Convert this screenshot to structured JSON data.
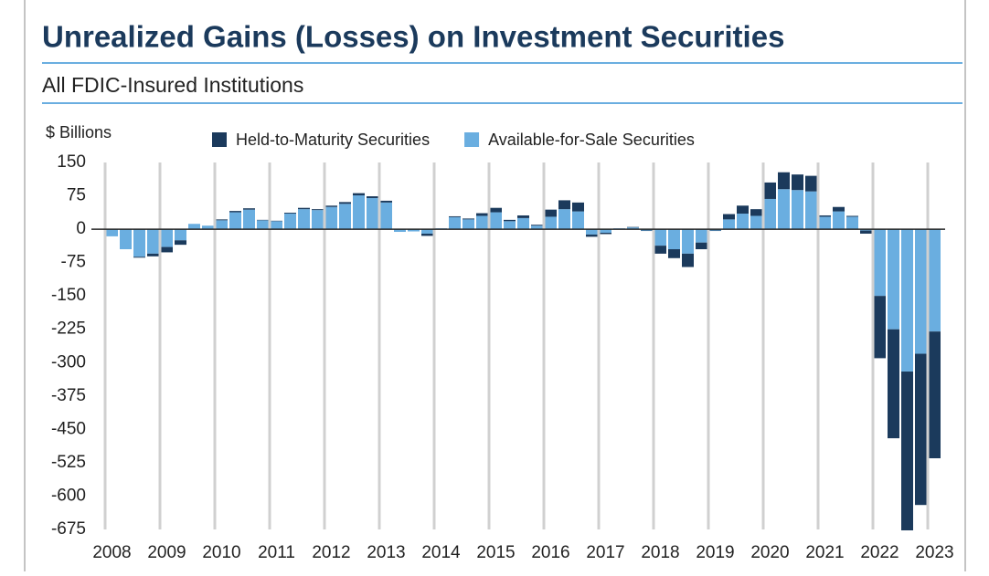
{
  "chart_data": {
    "type": "stacked-bar",
    "title": "Unrealized Gains (Losses) on Investment Securities",
    "subtitle": "All FDIC-Insured Institutions",
    "y_label": "$ Billions",
    "categories": [
      "2008",
      null,
      null,
      null,
      "2009",
      null,
      null,
      null,
      "2010",
      null,
      null,
      null,
      "2011",
      null,
      null,
      null,
      "2012",
      null,
      null,
      null,
      "2013",
      null,
      null,
      null,
      "2014",
      null,
      null,
      null,
      "2015",
      null,
      null,
      null,
      "2016",
      null,
      null,
      null,
      "2017",
      null,
      null,
      null,
      "2018",
      null,
      null,
      null,
      "2019",
      null,
      null,
      null,
      "2020",
      null,
      null,
      null,
      "2021",
      null,
      null,
      null,
      "2022",
      null,
      null,
      null,
      "2023"
    ],
    "series": [
      {
        "name": "Held-to-Maturity Securities",
        "color": "#1b3a5c",
        "values": [
          0,
          0,
          -2,
          -6,
          -12,
          -10,
          0,
          0,
          2,
          3,
          3,
          1,
          1,
          2,
          3,
          2,
          3,
          4,
          5,
          4,
          4,
          0,
          0,
          -5,
          0,
          2,
          2,
          6,
          10,
          3,
          6,
          2,
          16,
          20,
          20,
          -5,
          -3,
          0,
          1,
          -1,
          -18,
          -20,
          -30,
          -15,
          -1,
          12,
          18,
          15,
          37,
          38,
          35,
          35,
          3,
          10,
          2,
          -7,
          -140,
          -245,
          -370,
          -340,
          -285
        ]
      },
      {
        "name": "Available-for-Sale Securities",
        "color": "#6aaee0",
        "values": [
          -16,
          -45,
          -62,
          -55,
          -40,
          -25,
          12,
          8,
          20,
          38,
          44,
          20,
          18,
          35,
          45,
          43,
          50,
          57,
          76,
          70,
          60,
          -6,
          -5,
          -10,
          2,
          27,
          22,
          30,
          38,
          18,
          25,
          8,
          28,
          45,
          40,
          -12,
          -8,
          2,
          4,
          -3,
          -37,
          -45,
          -55,
          -30,
          -3,
          22,
          35,
          30,
          68,
          90,
          88,
          85,
          28,
          40,
          28,
          -3,
          -150,
          -225,
          -320,
          -280,
          -230
        ]
      }
    ],
    "ylim": [
      -675,
      150
    ],
    "yticks": [
      150,
      75,
      0,
      -75,
      -150,
      -225,
      -300,
      -375,
      -450,
      -525,
      -600,
      -675
    ],
    "legend": "top"
  }
}
